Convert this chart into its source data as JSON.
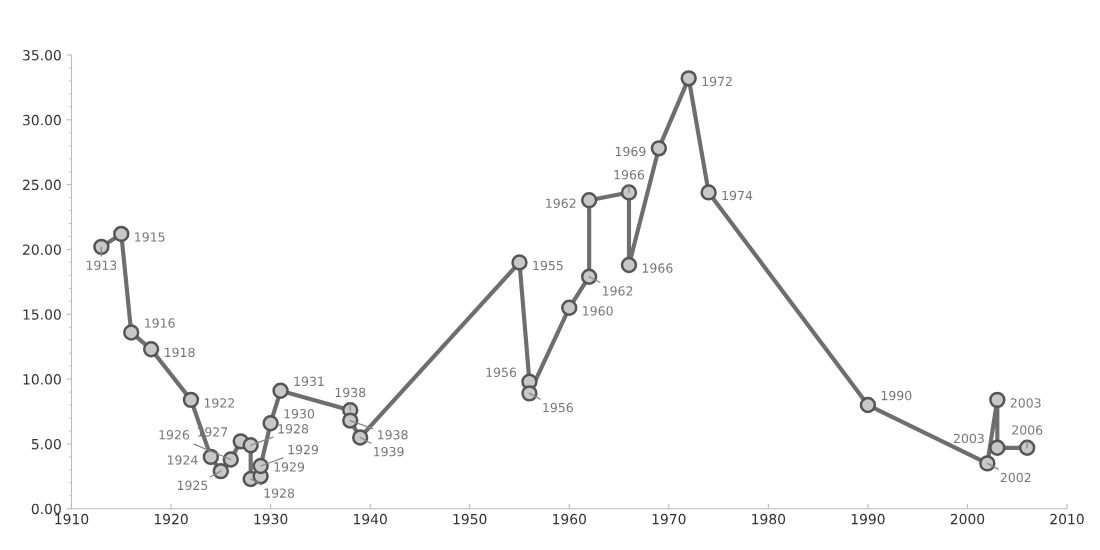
{
  "chart_data": {
    "type": "line",
    "x": [
      1913,
      1915,
      1916,
      1918,
      1922,
      1924,
      1925,
      1926,
      1927,
      1928,
      1928,
      1929,
      1929,
      1930,
      1931,
      1938,
      1938,
      1939,
      1955,
      1956,
      1956,
      1960,
      1962,
      1962,
      1966,
      1966,
      1969,
      1972,
      1974,
      1990,
      2002,
      2003,
      2003,
      2006
    ],
    "series": [
      {
        "color": "#6e6e6e",
        "values": [
          20.2,
          21.2,
          13.6,
          12.3,
          8.4,
          4.0,
          2.9,
          3.8,
          5.2,
          4.9,
          2.3,
          2.5,
          3.3,
          6.6,
          9.1,
          7.6,
          6.8,
          5.5,
          19.0,
          9.8,
          8.9,
          15.5,
          17.9,
          23.8,
          24.4,
          18.8,
          27.8,
          33.2,
          24.4,
          8.0,
          3.5,
          8.4,
          4.7,
          4.7
        ]
      }
    ],
    "annotations": [
      {
        "text": "1913",
        "x": 1913,
        "y": 20.2
      },
      {
        "text": "1915",
        "x": 1915,
        "y": 21.2
      },
      {
        "text": "1916",
        "x": 1916,
        "y": 13.6
      },
      {
        "text": "1918",
        "x": 1918,
        "y": 12.3
      },
      {
        "text": "1922",
        "x": 1922,
        "y": 8.4
      },
      {
        "text": "1924",
        "x": 1924,
        "y": 4.0
      },
      {
        "text": "1925",
        "x": 1925,
        "y": 2.9
      },
      {
        "text": "1926",
        "x": 1926,
        "y": 3.8
      },
      {
        "text": "1927",
        "x": 1927,
        "y": 5.2
      },
      {
        "text": "1928",
        "x": 1928,
        "y": 4.9
      },
      {
        "text": "1928",
        "x": 1928,
        "y": 2.3
      },
      {
        "text": "1929",
        "x": 1929,
        "y": 2.5
      },
      {
        "text": "1929",
        "x": 1929,
        "y": 3.3
      },
      {
        "text": "1930",
        "x": 1930,
        "y": 6.6
      },
      {
        "text": "1931",
        "x": 1931,
        "y": 9.1
      },
      {
        "text": "1938",
        "x": 1938,
        "y": 7.6
      },
      {
        "text": "1938",
        "x": 1938,
        "y": 6.8
      },
      {
        "text": "1939",
        "x": 1939,
        "y": 5.5
      },
      {
        "text": "1955",
        "x": 1955,
        "y": 19.0
      },
      {
        "text": "1956",
        "x": 1956,
        "y": 9.8
      },
      {
        "text": "1956",
        "x": 1956,
        "y": 8.9
      },
      {
        "text": "1960",
        "x": 1960,
        "y": 15.5
      },
      {
        "text": "1962",
        "x": 1962,
        "y": 17.9
      },
      {
        "text": "1962",
        "x": 1962,
        "y": 23.8
      },
      {
        "text": "1966",
        "x": 1966,
        "y": 24.4
      },
      {
        "text": "1966",
        "x": 1966,
        "y": 18.8
      },
      {
        "text": "1969",
        "x": 1969,
        "y": 27.8
      },
      {
        "text": "1972",
        "x": 1972,
        "y": 33.2
      },
      {
        "text": "1974",
        "x": 1974,
        "y": 24.4
      },
      {
        "text": "1990",
        "x": 1990,
        "y": 8.0
      },
      {
        "text": "2002",
        "x": 2002,
        "y": 3.5
      },
      {
        "text": "2003",
        "x": 2003,
        "y": 8.4
      },
      {
        "text": "2003",
        "x": 2003,
        "y": 4.7
      },
      {
        "text": "2006",
        "x": 2006,
        "y": 4.7
      }
    ],
    "xlim": [
      1910,
      2010
    ],
    "xticks": [
      1910,
      1920,
      1930,
      1940,
      1950,
      1960,
      1970,
      1980,
      1990,
      2000,
      2010
    ],
    "ylim": [
      0,
      35
    ],
    "yticks": [
      {
        "value": 0,
        "label": "0.00"
      },
      {
        "value": 5,
        "label": "5.00"
      },
      {
        "value": 10,
        "label": "10.00"
      },
      {
        "value": 15,
        "label": "15.00"
      },
      {
        "value": 20,
        "label": "20.00"
      },
      {
        "value": 25,
        "label": "25.00"
      },
      {
        "value": 30,
        "label": "30.00"
      },
      {
        "value": 35,
        "label": "35.00"
      }
    ],
    "marker": "circle",
    "line_style": "solid",
    "grid": false,
    "legend": false
  }
}
